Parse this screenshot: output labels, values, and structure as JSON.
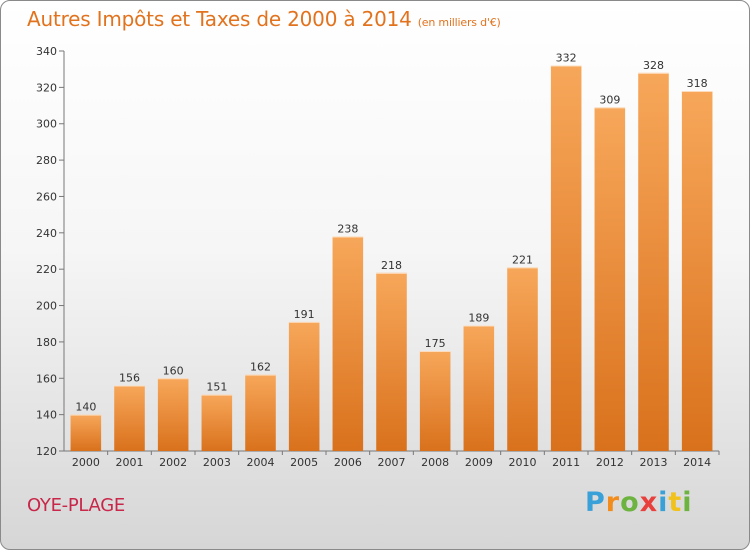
{
  "header": {
    "title": "Autres Impôts et Taxes de 2000 à 2014",
    "unit": "(en milliers d'€)"
  },
  "footer": {
    "place": "OYE-PLAGE",
    "logo": "Proxiti"
  },
  "colors": {
    "title": "#e2731e",
    "place": "#c8274a",
    "bar_light": "#f7a75a",
    "bar_dark": "#d9711c"
  },
  "chart_data": {
    "type": "bar",
    "title": "Autres Impôts et Taxes de 2000 à 2014",
    "subtitle": "(en milliers d'€)",
    "xlabel": "",
    "ylabel": "",
    "categories": [
      "2000",
      "2001",
      "2002",
      "2003",
      "2004",
      "2005",
      "2006",
      "2007",
      "2008",
      "2009",
      "2010",
      "2011",
      "2012",
      "2013",
      "2014"
    ],
    "values": [
      140,
      156,
      160,
      151,
      162,
      191,
      238,
      218,
      175,
      189,
      221,
      332,
      309,
      328,
      318
    ],
    "ylim": [
      120,
      340
    ],
    "yticks": [
      120,
      140,
      160,
      180,
      200,
      220,
      240,
      260,
      280,
      300,
      320,
      340
    ],
    "grid": false,
    "legend": "none"
  }
}
